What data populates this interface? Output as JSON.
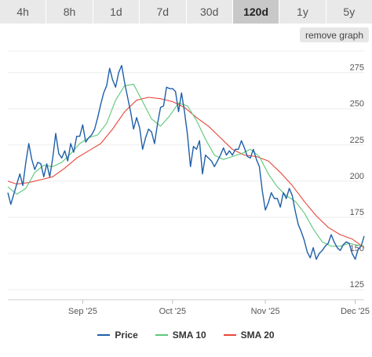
{
  "tabs": [
    {
      "label": "4h",
      "active": false
    },
    {
      "label": "8h",
      "active": false
    },
    {
      "label": "1d",
      "active": false
    },
    {
      "label": "7d",
      "active": false
    },
    {
      "label": "30d",
      "active": false
    },
    {
      "label": "120d",
      "active": true
    },
    {
      "label": "1y",
      "active": false
    },
    {
      "label": "5y",
      "active": false
    }
  ],
  "remove_graph_label": "remove graph",
  "colors": {
    "price": "#1f5fa8",
    "sma10": "#5cc77a",
    "sma20": "#e8463a",
    "grid": "#ececec"
  },
  "chart_data": {
    "type": "line",
    "x_ticks": [
      "Sep '25",
      "Oct '25",
      "Nov '25",
      "Dec '25"
    ],
    "y_ticks": [
      125,
      150,
      175,
      200,
      225,
      250,
      275
    ],
    "ylim": [
      118,
      290
    ],
    "xlim": [
      "2025-08-07",
      "2025-12-04"
    ],
    "grid": true,
    "legend_position": "bottom",
    "series": [
      {
        "name": "Price",
        "color": "#1f5fa8",
        "points": [
          [
            "2025-08-07",
            192
          ],
          [
            "2025-08-08",
            184
          ],
          [
            "2025-08-09",
            191
          ],
          [
            "2025-08-10",
            198
          ],
          [
            "2025-08-11",
            205
          ],
          [
            "2025-08-12",
            197
          ],
          [
            "2025-08-13",
            213
          ],
          [
            "2025-08-14",
            226
          ],
          [
            "2025-08-15",
            215
          ],
          [
            "2025-08-16",
            208
          ],
          [
            "2025-08-17",
            213
          ],
          [
            "2025-08-18",
            212
          ],
          [
            "2025-08-19",
            203
          ],
          [
            "2025-08-20",
            212
          ],
          [
            "2025-08-21",
            203
          ],
          [
            "2025-08-22",
            216
          ],
          [
            "2025-08-23",
            233
          ],
          [
            "2025-08-24",
            219
          ],
          [
            "2025-08-25",
            216
          ],
          [
            "2025-08-26",
            221
          ],
          [
            "2025-08-27",
            214
          ],
          [
            "2025-08-28",
            226
          ],
          [
            "2025-08-29",
            220
          ],
          [
            "2025-08-30",
            231
          ],
          [
            "2025-08-31",
            231
          ],
          [
            "2025-09-01",
            239
          ],
          [
            "2025-09-02",
            227
          ],
          [
            "2025-09-03",
            230
          ],
          [
            "2025-09-04",
            232
          ],
          [
            "2025-09-05",
            236
          ],
          [
            "2025-09-06",
            244
          ],
          [
            "2025-09-07",
            253
          ],
          [
            "2025-09-08",
            261
          ],
          [
            "2025-09-09",
            266
          ],
          [
            "2025-09-10",
            278
          ],
          [
            "2025-09-11",
            270
          ],
          [
            "2025-09-12",
            265
          ],
          [
            "2025-09-13",
            275
          ],
          [
            "2025-09-14",
            280
          ],
          [
            "2025-09-15",
            268
          ],
          [
            "2025-09-16",
            258
          ],
          [
            "2025-09-17",
            248
          ],
          [
            "2025-09-18",
            236
          ],
          [
            "2025-09-19",
            244
          ],
          [
            "2025-09-20",
            237
          ],
          [
            "2025-09-21",
            222
          ],
          [
            "2025-09-22",
            230
          ],
          [
            "2025-09-23",
            236
          ],
          [
            "2025-09-24",
            234
          ],
          [
            "2025-09-25",
            226
          ],
          [
            "2025-09-26",
            240
          ],
          [
            "2025-09-27",
            251
          ],
          [
            "2025-09-28",
            252
          ],
          [
            "2025-09-29",
            265
          ],
          [
            "2025-09-30",
            264
          ],
          [
            "2025-10-01",
            264
          ],
          [
            "2025-10-02",
            262
          ],
          [
            "2025-10-03",
            248
          ],
          [
            "2025-10-04",
            261
          ],
          [
            "2025-10-05",
            248
          ],
          [
            "2025-10-06",
            232
          ],
          [
            "2025-10-07",
            210
          ],
          [
            "2025-10-08",
            224
          ],
          [
            "2025-10-09",
            222
          ],
          [
            "2025-10-10",
            228
          ],
          [
            "2025-10-11",
            205
          ],
          [
            "2025-10-12",
            218
          ],
          [
            "2025-10-13",
            216
          ],
          [
            "2025-10-14",
            214
          ],
          [
            "2025-10-15",
            210
          ],
          [
            "2025-10-16",
            214
          ],
          [
            "2025-10-17",
            218
          ],
          [
            "2025-10-18",
            223
          ],
          [
            "2025-10-19",
            218
          ],
          [
            "2025-10-20",
            221
          ],
          [
            "2025-10-21",
            218
          ],
          [
            "2025-10-22",
            222
          ],
          [
            "2025-10-23",
            222
          ],
          [
            "2025-10-24",
            228
          ],
          [
            "2025-10-25",
            223
          ],
          [
            "2025-10-26",
            217
          ],
          [
            "2025-10-27",
            216
          ],
          [
            "2025-10-28",
            222
          ],
          [
            "2025-10-29",
            215
          ],
          [
            "2025-10-30",
            210
          ],
          [
            "2025-10-31",
            193
          ],
          [
            "2025-11-01",
            180
          ],
          [
            "2025-11-02",
            185
          ],
          [
            "2025-11-03",
            192
          ],
          [
            "2025-11-04",
            188
          ],
          [
            "2025-11-05",
            188
          ],
          [
            "2025-11-06",
            182
          ],
          [
            "2025-11-07",
            192
          ],
          [
            "2025-11-08",
            188
          ],
          [
            "2025-11-09",
            195
          ],
          [
            "2025-11-10",
            190
          ],
          [
            "2025-11-11",
            179
          ],
          [
            "2025-11-12",
            170
          ],
          [
            "2025-11-13",
            165
          ],
          [
            "2025-11-14",
            159
          ],
          [
            "2025-11-15",
            151
          ],
          [
            "2025-11-16",
            147
          ],
          [
            "2025-11-17",
            154
          ],
          [
            "2025-11-18",
            146
          ],
          [
            "2025-11-19",
            150
          ],
          [
            "2025-11-20",
            152
          ],
          [
            "2025-11-21",
            155
          ],
          [
            "2025-11-22",
            157
          ],
          [
            "2025-11-23",
            163
          ],
          [
            "2025-11-24",
            158
          ],
          [
            "2025-11-25",
            154
          ],
          [
            "2025-11-26",
            152
          ],
          [
            "2025-11-27",
            156
          ],
          [
            "2025-11-28",
            158
          ],
          [
            "2025-11-29",
            157
          ],
          [
            "2025-11-30",
            150
          ],
          [
            "2025-12-01",
            146
          ],
          [
            "2025-12-02",
            153
          ],
          [
            "2025-12-03",
            155
          ],
          [
            "2025-12-04",
            162
          ]
        ]
      },
      {
        "name": "SMA 10",
        "color": "#5cc77a",
        "points": [
          [
            "2025-08-07",
            196
          ],
          [
            "2025-08-10",
            191
          ],
          [
            "2025-08-13",
            195
          ],
          [
            "2025-08-16",
            206
          ],
          [
            "2025-08-19",
            211
          ],
          [
            "2025-08-22",
            210
          ],
          [
            "2025-08-25",
            213
          ],
          [
            "2025-08-28",
            219
          ],
          [
            "2025-08-31",
            226
          ],
          [
            "2025-09-03",
            230
          ],
          [
            "2025-09-06",
            232
          ],
          [
            "2025-09-09",
            240
          ],
          [
            "2025-09-12",
            256
          ],
          [
            "2025-09-15",
            266
          ],
          [
            "2025-09-18",
            267
          ],
          [
            "2025-09-21",
            255
          ],
          [
            "2025-09-24",
            243
          ],
          [
            "2025-09-27",
            238
          ],
          [
            "2025-09-30",
            245
          ],
          [
            "2025-10-03",
            254
          ],
          [
            "2025-10-06",
            252
          ],
          [
            "2025-10-09",
            242
          ],
          [
            "2025-10-12",
            229
          ],
          [
            "2025-10-15",
            218
          ],
          [
            "2025-10-18",
            215
          ],
          [
            "2025-10-21",
            217
          ],
          [
            "2025-10-24",
            219
          ],
          [
            "2025-10-27",
            222
          ],
          [
            "2025-10-30",
            217
          ],
          [
            "2025-11-02",
            205
          ],
          [
            "2025-11-05",
            196
          ],
          [
            "2025-11-08",
            190
          ],
          [
            "2025-11-11",
            186
          ],
          [
            "2025-11-14",
            178
          ],
          [
            "2025-11-17",
            167
          ],
          [
            "2025-11-20",
            158
          ],
          [
            "2025-11-23",
            155
          ],
          [
            "2025-11-26",
            155
          ],
          [
            "2025-11-29",
            157
          ],
          [
            "2025-12-01",
            156
          ],
          [
            "2025-12-04",
            155
          ]
        ]
      },
      {
        "name": "SMA 20",
        "color": "#e8463a",
        "points": [
          [
            "2025-08-07",
            200
          ],
          [
            "2025-08-10",
            198
          ],
          [
            "2025-08-14",
            199
          ],
          [
            "2025-08-18",
            201
          ],
          [
            "2025-08-22",
            203
          ],
          [
            "2025-08-26",
            209
          ],
          [
            "2025-08-30",
            216
          ],
          [
            "2025-09-03",
            221
          ],
          [
            "2025-09-07",
            226
          ],
          [
            "2025-09-11",
            236
          ],
          [
            "2025-09-15",
            248
          ],
          [
            "2025-09-19",
            256
          ],
          [
            "2025-09-23",
            258
          ],
          [
            "2025-09-27",
            257
          ],
          [
            "2025-10-01",
            255
          ],
          [
            "2025-10-05",
            251
          ],
          [
            "2025-10-09",
            244
          ],
          [
            "2025-10-13",
            238
          ],
          [
            "2025-10-17",
            230
          ],
          [
            "2025-10-21",
            222
          ],
          [
            "2025-10-25",
            218
          ],
          [
            "2025-10-29",
            217
          ],
          [
            "2025-11-02",
            214
          ],
          [
            "2025-11-06",
            206
          ],
          [
            "2025-11-10",
            197
          ],
          [
            "2025-11-14",
            186
          ],
          [
            "2025-11-18",
            176
          ],
          [
            "2025-11-22",
            168
          ],
          [
            "2025-11-26",
            163
          ],
          [
            "2025-11-30",
            160
          ],
          [
            "2025-12-04",
            154
          ]
        ]
      }
    ]
  }
}
